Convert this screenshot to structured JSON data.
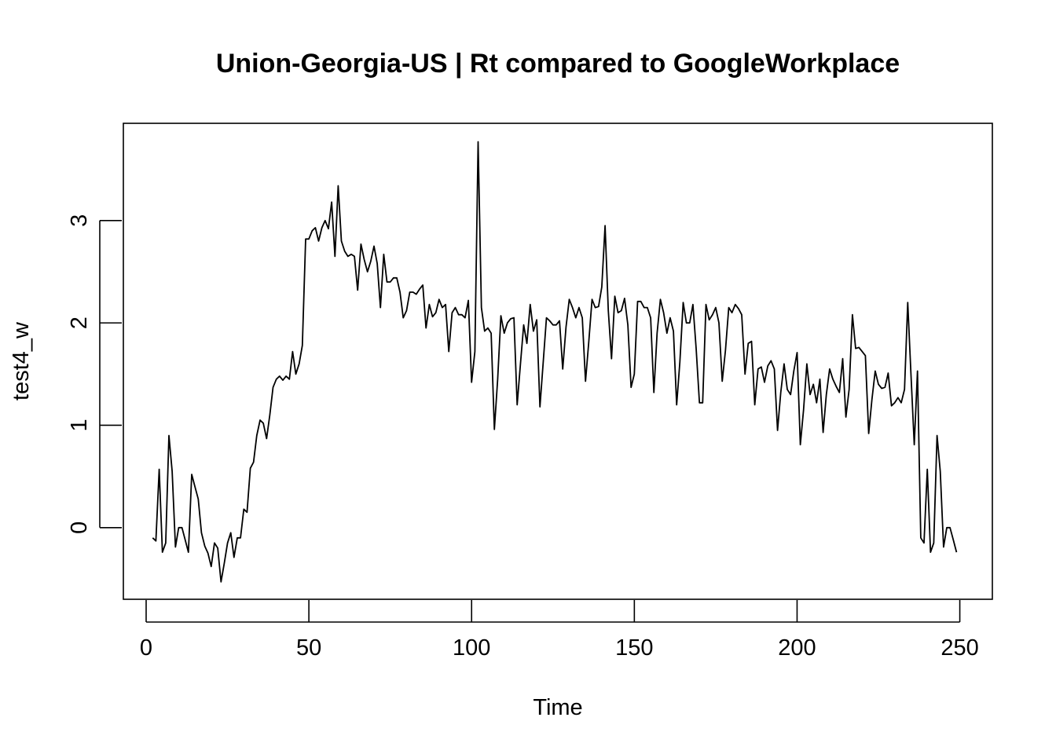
{
  "chart_data": {
    "type": "line",
    "title": "Union-Georgia-US | Rt compared to GoogleWorkplace",
    "xlabel": "Time",
    "ylabel": "test4_w",
    "xlim": [
      -7,
      260
    ],
    "ylim": [
      -0.7,
      3.95
    ],
    "x_ticks": [
      0,
      50,
      100,
      150,
      200,
      250
    ],
    "y_ticks": [
      0,
      1,
      2,
      3
    ],
    "grid": false,
    "line_color": "#000000",
    "x_start": 2,
    "values": [
      -0.1,
      -0.13,
      0.57,
      -0.24,
      -0.15,
      0.9,
      0.55,
      -0.19,
      0.0,
      0.0,
      -0.12,
      -0.24,
      0.52,
      0.4,
      0.28,
      -0.05,
      -0.18,
      -0.25,
      -0.38,
      -0.15,
      -0.2,
      -0.53,
      -0.35,
      -0.15,
      -0.05,
      -0.29,
      -0.1,
      -0.1,
      0.18,
      0.15,
      0.58,
      0.64,
      0.9,
      1.05,
      1.02,
      0.87,
      1.1,
      1.37,
      1.45,
      1.48,
      1.44,
      1.48,
      1.45,
      1.72,
      1.5,
      1.6,
      1.78,
      2.82,
      2.82,
      2.9,
      2.93,
      2.8,
      2.93,
      3.0,
      2.92,
      3.18,
      2.65,
      3.34,
      2.8,
      2.7,
      2.65,
      2.67,
      2.65,
      2.32,
      2.77,
      2.62,
      2.5,
      2.6,
      2.75,
      2.58,
      2.15,
      2.67,
      2.4,
      2.4,
      2.44,
      2.44,
      2.3,
      2.05,
      2.12,
      2.3,
      2.3,
      2.28,
      2.33,
      2.37,
      1.95,
      2.18,
      2.06,
      2.1,
      2.23,
      2.15,
      2.18,
      1.72,
      2.1,
      2.15,
      2.08,
      2.08,
      2.05,
      2.22,
      1.42,
      1.72,
      3.77,
      2.15,
      1.92,
      1.95,
      1.9,
      0.96,
      1.45,
      2.07,
      1.9,
      2.0,
      2.04,
      2.05,
      1.2,
      1.6,
      1.98,
      1.8,
      2.18,
      1.92,
      2.03,
      1.18,
      1.62,
      2.05,
      2.02,
      1.98,
      1.98,
      2.02,
      1.55,
      1.96,
      2.23,
      2.15,
      2.05,
      2.15,
      2.05,
      1.43,
      1.82,
      2.23,
      2.15,
      2.16,
      2.35,
      2.95,
      2.12,
      1.65,
      2.26,
      2.1,
      2.12,
      2.24,
      1.98,
      1.37,
      1.5,
      2.21,
      2.21,
      2.15,
      2.15,
      2.05,
      1.32,
      1.9,
      2.23,
      2.1,
      1.9,
      2.05,
      1.92,
      1.2,
      1.62,
      2.2,
      2.0,
      2.0,
      2.18,
      1.75,
      1.22,
      1.22,
      2.18,
      2.03,
      2.08,
      2.15,
      2.0,
      1.43,
      1.73,
      2.15,
      2.1,
      2.18,
      2.14,
      2.08,
      1.5,
      1.8,
      1.82,
      1.2,
      1.55,
      1.57,
      1.42,
      1.58,
      1.63,
      1.55,
      0.95,
      1.32,
      1.6,
      1.35,
      1.3,
      1.53,
      1.71,
      0.81,
      1.15,
      1.6,
      1.3,
      1.4,
      1.22,
      1.45,
      0.93,
      1.3,
      1.55,
      1.45,
      1.38,
      1.32,
      1.65,
      1.08,
      1.35,
      2.08,
      1.75,
      1.76,
      1.72,
      1.68,
      0.92,
      1.25,
      1.53,
      1.4,
      1.36,
      1.37,
      1.51,
      1.19,
      1.22,
      1.27,
      1.22,
      1.35,
      2.2,
      1.5,
      0.81,
      1.53,
      -0.1,
      -0.15,
      0.57,
      -0.24,
      -0.15,
      0.9,
      0.55,
      -0.19,
      0.0,
      0.0,
      -0.12,
      -0.24
    ]
  }
}
